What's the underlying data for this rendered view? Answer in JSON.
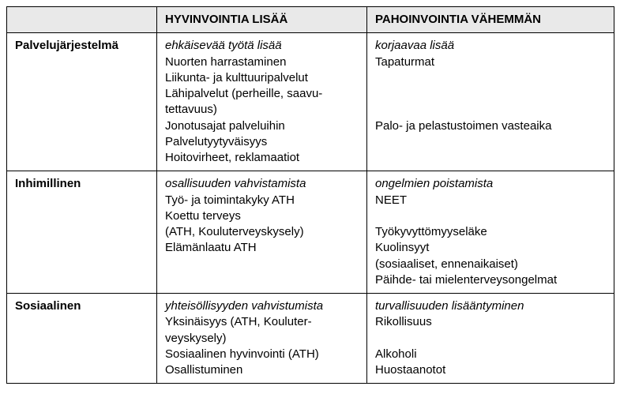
{
  "columns": {
    "blank": "",
    "col1": "HYVINVOINTIA LISÄÄ",
    "col2": "PAHOINVOINTIA VÄHEMMÄN"
  },
  "rows": {
    "r1": {
      "head": "Palvelujärjestelmä",
      "c1_em": "ehkäisevää työtä lisää",
      "c1_l1": "Nuorten harrastaminen",
      "c1_l2": "Liikunta- ja kulttuuripalvelut",
      "c1_l3a": "Lähipalvelut (perheille, saavu-",
      "c1_l3b": "tettavuus)",
      "c1_l4": "Jonotusajat palveluihin",
      "c1_l5": "Palvelutyytyväisyys",
      "c1_l6": "Hoitovirheet, reklamaatiot",
      "c2_em": "korjaavaa lisää",
      "c2_l1": "Tapaturmat",
      "c2_l2": "Palo- ja pelastustoimen vasteaika"
    },
    "r2": {
      "head": "Inhimillinen",
      "c1_em": "osallisuuden vahvistamista",
      "c1_l1": "Työ- ja toimintakyky ATH",
      "c1_l2": "Koettu terveys",
      "c1_l3": "(ATH, Kouluterveyskysely)",
      "c1_l4": "Elämänlaatu ATH",
      "c2_em": "ongelmien poistamista",
      "c2_l1": "NEET",
      "c2_l2": "Työkyvyttömyyseläke",
      "c2_l3": "Kuolinsyyt",
      "c2_l4": "(sosiaaliset, ennenaikaiset)",
      "c2_l5": "Päihde- tai mielenterveysongelmat"
    },
    "r3": {
      "head": "Sosiaalinen",
      "c1_em": "yhteisöllisyyden vahvistumista",
      "c1_l1a": "Yksinäisyys (ATH, Kouluter-",
      "c1_l1b": "veyskysely)",
      "c1_l2": "Sosiaalinen hyvinvointi (ATH)",
      "c1_l3": "Osallistuminen",
      "c2_em": "turvallisuuden lisääntyminen",
      "c2_l1": "Rikollisuus",
      "c2_l2": "Alkoholi",
      "c2_l3": "Huostaanotot"
    }
  }
}
